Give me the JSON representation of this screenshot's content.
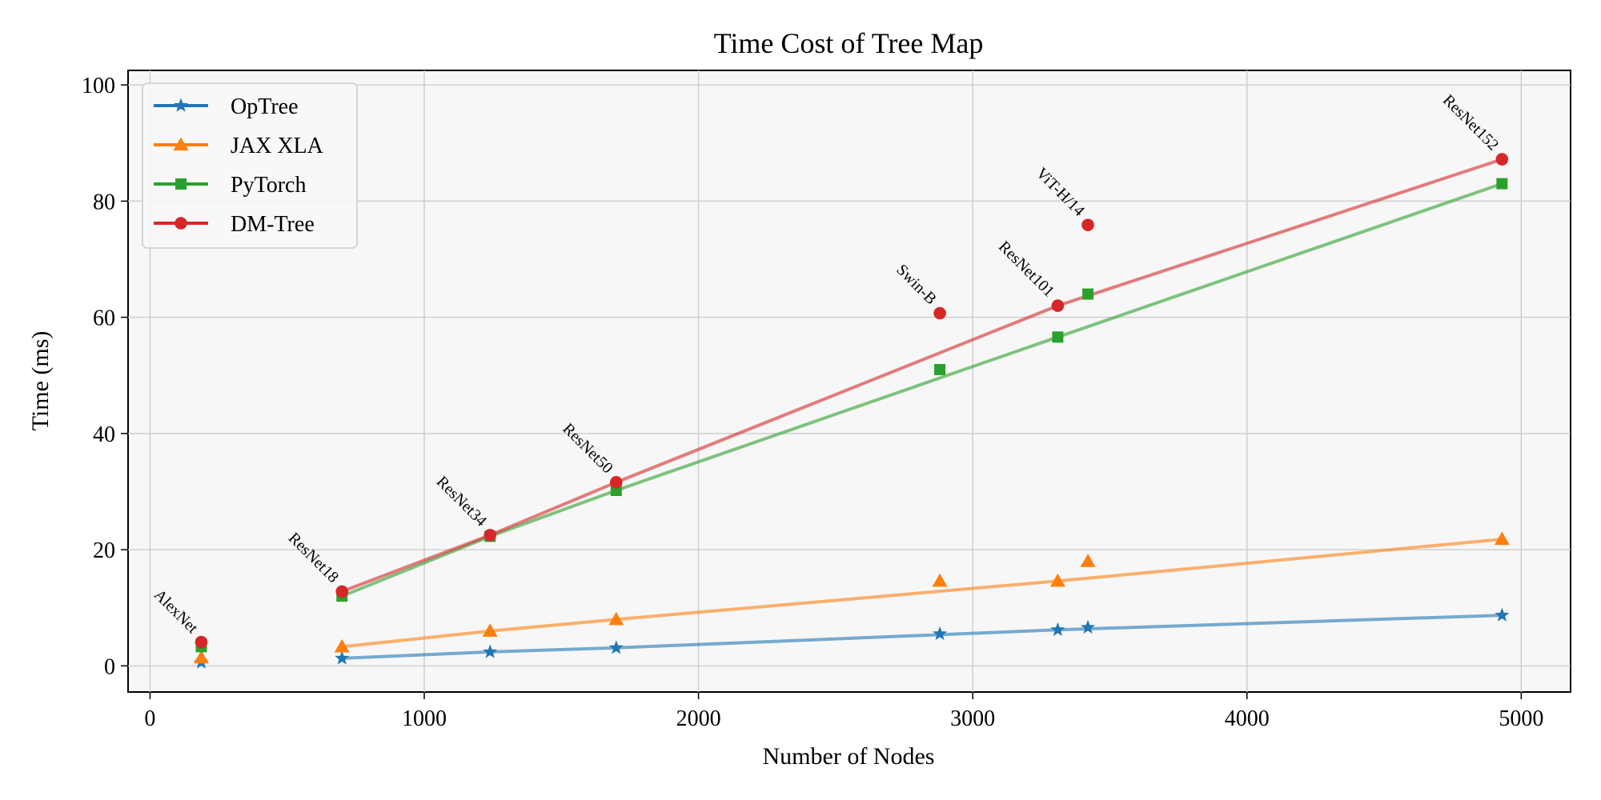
{
  "chart_data": {
    "type": "scatter",
    "title": "Time Cost of Tree Map",
    "xlabel": "Number of Nodes",
    "ylabel": "Time (ms)",
    "xlim": [
      -80,
      5180
    ],
    "ylim": [
      -4.5,
      102.5
    ],
    "xticks": [
      0,
      1000,
      2000,
      3000,
      4000,
      5000
    ],
    "yticks": [
      0,
      20,
      40,
      60,
      80,
      100
    ],
    "grid": true,
    "legend": "top-left",
    "models": [
      {
        "label": "AlexNet",
        "x": 187
      },
      {
        "label": "ResNet18",
        "x": 700
      },
      {
        "label": "ResNet34",
        "x": 1240
      },
      {
        "label": "ResNet50",
        "x": 1700
      },
      {
        "label": "Swin-B",
        "x": 2880
      },
      {
        "label": "ResNet101",
        "x": 3310
      },
      {
        "label": "ViT-H/14",
        "x": 3420
      },
      {
        "label": "ResNet152",
        "x": 4930
      }
    ],
    "series": [
      {
        "name": "OpTree",
        "color": "#1f77b4",
        "marker": "star",
        "points": [
          [
            187,
            0.6
          ],
          [
            700,
            1.3
          ],
          [
            1240,
            2.4
          ],
          [
            1700,
            3.1
          ],
          [
            2880,
            5.5
          ],
          [
            3310,
            6.2
          ],
          [
            3420,
            6.6
          ],
          [
            4930,
            8.7
          ]
        ],
        "fit": [
          [
            700,
            1.3
          ],
          [
            1240,
            2.4
          ],
          [
            1700,
            3.1
          ],
          [
            3310,
            6.2
          ],
          [
            4930,
            8.7
          ]
        ]
      },
      {
        "name": "JAX XLA",
        "color": "#ff7f0e",
        "marker": "triangle",
        "points": [
          [
            187,
            1.4
          ],
          [
            700,
            3.3
          ],
          [
            1240,
            6.0
          ],
          [
            1700,
            8.0
          ],
          [
            2880,
            14.6
          ],
          [
            3310,
            14.6
          ],
          [
            3420,
            18.0
          ],
          [
            4930,
            21.8
          ]
        ],
        "fit": [
          [
            700,
            3.3
          ],
          [
            1240,
            6.0
          ],
          [
            1700,
            8.0
          ],
          [
            3310,
            14.6
          ],
          [
            4930,
            21.8
          ]
        ]
      },
      {
        "name": "PyTorch",
        "color": "#2ca02c",
        "marker": "square",
        "points": [
          [
            187,
            3.3
          ],
          [
            700,
            12.0
          ],
          [
            1240,
            22.3
          ],
          [
            1700,
            30.2
          ],
          [
            2880,
            51.0
          ],
          [
            3310,
            56.6
          ],
          [
            3420,
            64.0
          ],
          [
            4930,
            83.0
          ]
        ],
        "fit": [
          [
            700,
            12.0
          ],
          [
            1240,
            22.3
          ],
          [
            1700,
            30.2
          ],
          [
            3310,
            56.6
          ],
          [
            4930,
            83.0
          ]
        ]
      },
      {
        "name": "DM-Tree",
        "color": "#d62728",
        "marker": "circle",
        "points": [
          [
            187,
            4.1
          ],
          [
            700,
            12.8
          ],
          [
            1240,
            22.5
          ],
          [
            1700,
            31.6
          ],
          [
            2880,
            60.7
          ],
          [
            3310,
            62.0
          ],
          [
            3420,
            75.9
          ],
          [
            4930,
            87.2
          ]
        ],
        "fit": [
          [
            700,
            12.8
          ],
          [
            1240,
            22.5
          ],
          [
            1700,
            31.6
          ],
          [
            3310,
            62.0
          ],
          [
            4930,
            87.2
          ]
        ]
      }
    ]
  }
}
